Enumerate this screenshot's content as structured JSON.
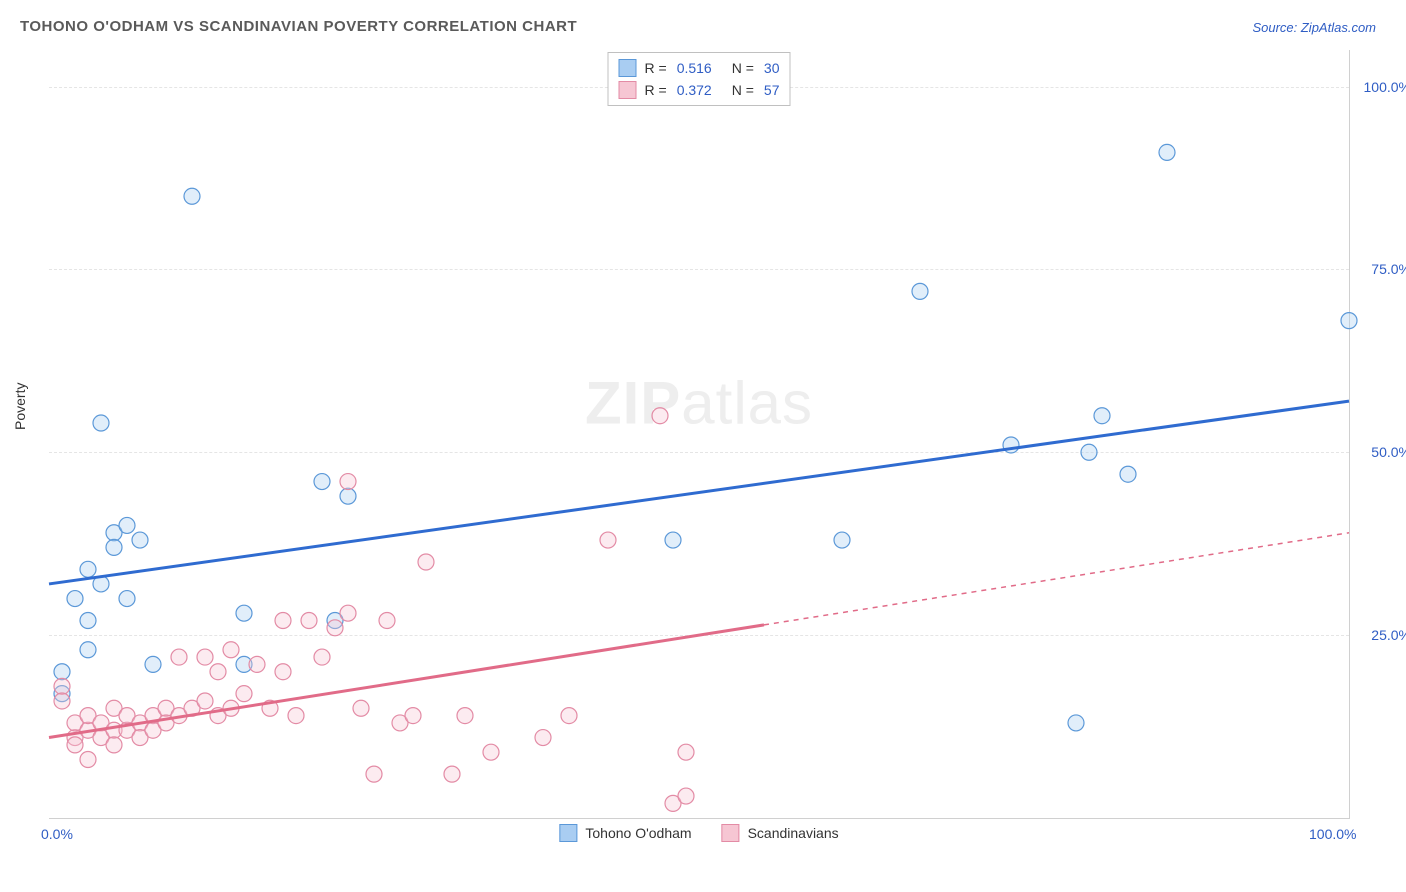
{
  "title": "TOHONO O'ODHAM VS SCANDINAVIAN POVERTY CORRELATION CHART",
  "source": "Source: ZipAtlas.com",
  "ylabel": "Poverty",
  "watermark": {
    "bold": "ZIP",
    "light": "atlas"
  },
  "chart": {
    "type": "scatter",
    "xlim": [
      0,
      100
    ],
    "ylim": [
      0,
      105
    ],
    "yticks": [
      25,
      50,
      75,
      100
    ],
    "ytick_labels": [
      "25.0%",
      "50.0%",
      "75.0%",
      "100.0%"
    ],
    "xticks": [
      0,
      100
    ],
    "xtick_labels": [
      "0.0%",
      "100.0%"
    ],
    "background_color": "#ffffff",
    "grid_color": "#e5e5e5",
    "grid_dash": "4,4",
    "marker_radius": 8,
    "marker_stroke_width": 1.2,
    "marker_fill_opacity": 0.35,
    "trend_line_width": 3,
    "series": [
      {
        "name": "Tohono O'odham",
        "color_fill": "#a9cdf2",
        "color_stroke": "#5b98d8",
        "trend_color": "#2f6bd0",
        "r": "0.516",
        "n": "30",
        "trend": {
          "x1": 0,
          "y1": 32,
          "x2": 100,
          "y2": 57,
          "dashed": false,
          "dashed_from_x": null
        },
        "points": [
          [
            1,
            17
          ],
          [
            1,
            20
          ],
          [
            2,
            30
          ],
          [
            3,
            34
          ],
          [
            3,
            23
          ],
          [
            3,
            27
          ],
          [
            4,
            32
          ],
          [
            4,
            54
          ],
          [
            5,
            39
          ],
          [
            5,
            37
          ],
          [
            6,
            30
          ],
          [
            6,
            40
          ],
          [
            7,
            38
          ],
          [
            8,
            21
          ],
          [
            11,
            85
          ],
          [
            15,
            21
          ],
          [
            15,
            28
          ],
          [
            21,
            46
          ],
          [
            22,
            27
          ],
          [
            23,
            44
          ],
          [
            48,
            38
          ],
          [
            61,
            38
          ],
          [
            67,
            72
          ],
          [
            74,
            51
          ],
          [
            79,
            13
          ],
          [
            80,
            50
          ],
          [
            81,
            55
          ],
          [
            83,
            47
          ],
          [
            86,
            91
          ],
          [
            100,
            68
          ]
        ]
      },
      {
        "name": "Scandinavians",
        "color_fill": "#f6c6d3",
        "color_stroke": "#e38ba5",
        "trend_color": "#e16b88",
        "r": "0.372",
        "n": "57",
        "trend": {
          "x1": 0,
          "y1": 11,
          "x2": 100,
          "y2": 39,
          "dashed": true,
          "dashed_from_x": 55
        },
        "points": [
          [
            1,
            18
          ],
          [
            1,
            16
          ],
          [
            2,
            11
          ],
          [
            2,
            13
          ],
          [
            2,
            10
          ],
          [
            3,
            12
          ],
          [
            3,
            8
          ],
          [
            3,
            14
          ],
          [
            4,
            13
          ],
          [
            4,
            11
          ],
          [
            5,
            12
          ],
          [
            5,
            10
          ],
          [
            5,
            15
          ],
          [
            6,
            12
          ],
          [
            6,
            14
          ],
          [
            7,
            13
          ],
          [
            7,
            11
          ],
          [
            8,
            14
          ],
          [
            8,
            12
          ],
          [
            9,
            15
          ],
          [
            9,
            13
          ],
          [
            10,
            14
          ],
          [
            10,
            22
          ],
          [
            11,
            15
          ],
          [
            12,
            22
          ],
          [
            12,
            16
          ],
          [
            13,
            14
          ],
          [
            13,
            20
          ],
          [
            14,
            15
          ],
          [
            14,
            23
          ],
          [
            15,
            17
          ],
          [
            16,
            21
          ],
          [
            17,
            15
          ],
          [
            18,
            20
          ],
          [
            18,
            27
          ],
          [
            19,
            14
          ],
          [
            20,
            27
          ],
          [
            21,
            22
          ],
          [
            22,
            26
          ],
          [
            23,
            28
          ],
          [
            23,
            46
          ],
          [
            24,
            15
          ],
          [
            25,
            6
          ],
          [
            26,
            27
          ],
          [
            27,
            13
          ],
          [
            28,
            14
          ],
          [
            29,
            35
          ],
          [
            31,
            6
          ],
          [
            32,
            14
          ],
          [
            34,
            9
          ],
          [
            38,
            11
          ],
          [
            40,
            14
          ],
          [
            43,
            38
          ],
          [
            47,
            55
          ],
          [
            48,
            2
          ],
          [
            49,
            9
          ],
          [
            49,
            3
          ]
        ]
      }
    ]
  }
}
